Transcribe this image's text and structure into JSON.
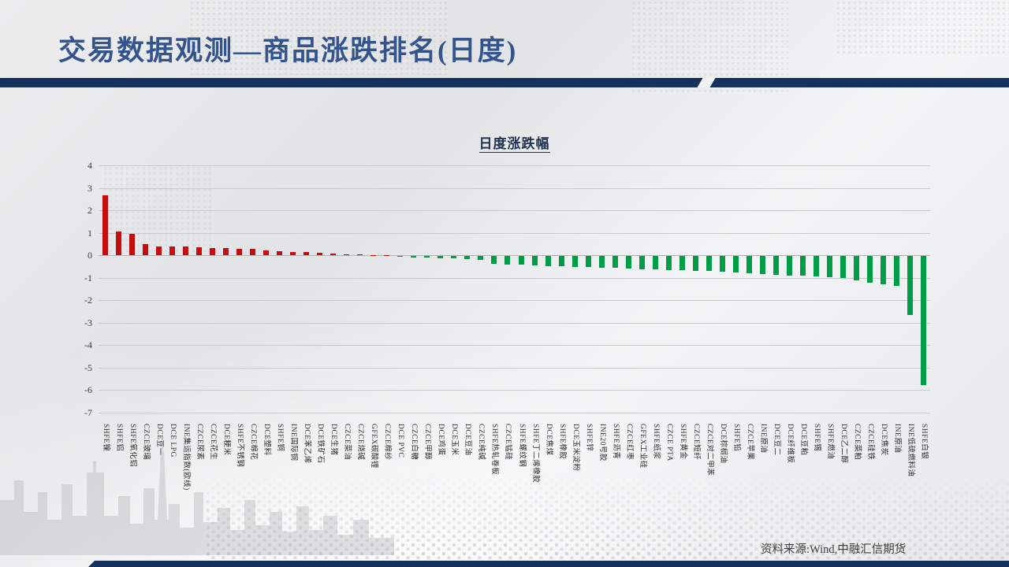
{
  "slide": {
    "title": "交易数据观测—商品涨跌排名(日度)",
    "source": "资料来源:Wind,中融汇信期货"
  },
  "chart_data": {
    "type": "bar",
    "title": "日度涨跌幅",
    "ylabel": "",
    "xlabel": "",
    "ylim": [
      -7,
      4
    ],
    "yticks": [
      4,
      3,
      2,
      1,
      0,
      -1,
      -2,
      -3,
      -4,
      -5,
      -6,
      -7
    ],
    "grid": true,
    "legend": "none",
    "positive_color": "#c40d0d",
    "negative_color": "#009c47",
    "categories": [
      "SHFE镍",
      "SHFE铝",
      "SHFE氧化铝",
      "CZCE玻璃",
      "DCE豆一",
      "DCE LPG",
      "INE集运指数(欧线)",
      "CZCE尿素",
      "CZCE花生",
      "DCE粳米",
      "SHFE不锈钢",
      "CZCE棉花",
      "DCE塑料",
      "SHFE铜",
      "INE国际铜",
      "DCE苯乙烯",
      "DCE铁矿石",
      "DCE生猪",
      "CZCE菜油",
      "CZCE烧碱",
      "GFEX碳酸锂",
      "CZCE棉纱",
      "DCE PVC",
      "CZCE白糖",
      "CZCE甲醇",
      "DCE鸡蛋",
      "DCE玉米",
      "DCE豆油",
      "CZCE纯碱",
      "SHFE热轧卷板",
      "CZCE锰硅",
      "SHFE螺纹钢",
      "SHFE丁二烯橡胶",
      "DCE焦煤",
      "SHFE橡胶",
      "DCE玉米淀粉",
      "SHFE锌",
      "INE20号胶",
      "SHFE沥青",
      "CZCE红枣",
      "GFEX工业硅",
      "SHFE纸浆",
      "CZCE PTA",
      "SHFE黄金",
      "CZCE短纤",
      "CZCE对二甲苯",
      "DCE棕榈油",
      "SHFE铅",
      "CZCE苹果",
      "INE原油",
      "DCE豆二",
      "DCE纤维板",
      "DCE豆粕",
      "SHFE锡",
      "SHFE燃油",
      "DCE乙二醇",
      "CZCE菜粕",
      "CZCE硅铁",
      "DCE焦炭",
      "INE原油",
      "INE低硫燃料油",
      "SHFE白银"
    ],
    "values": [
      2.65,
      1.05,
      0.95,
      0.48,
      0.4,
      0.38,
      0.37,
      0.36,
      0.32,
      0.3,
      0.29,
      0.27,
      0.2,
      0.17,
      0.15,
      0.13,
      0.1,
      0.07,
      0.04,
      0.02,
      0.01,
      0.01,
      -0.05,
      -0.06,
      -0.08,
      -0.1,
      -0.12,
      -0.14,
      -0.16,
      -0.35,
      -0.38,
      -0.4,
      -0.42,
      -0.45,
      -0.47,
      -0.48,
      -0.5,
      -0.52,
      -0.54,
      -0.56,
      -0.58,
      -0.6,
      -0.62,
      -0.64,
      -0.66,
      -0.68,
      -0.71,
      -0.74,
      -0.77,
      -0.8,
      -0.83,
      -0.86,
      -0.89,
      -0.92,
      -0.95,
      -0.98,
      -1.1,
      -1.2,
      -1.26,
      -1.35,
      -2.63,
      -5.75
    ]
  }
}
